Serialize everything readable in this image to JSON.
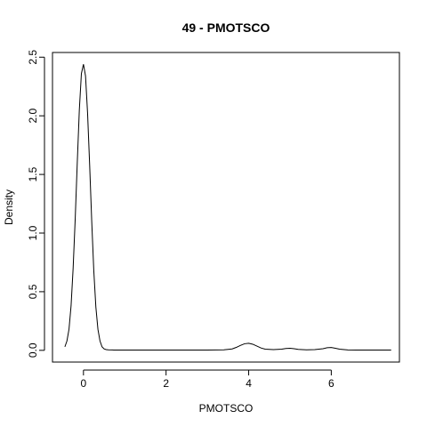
{
  "chart_data": {
    "type": "line",
    "title": "49 - PMOTSCO",
    "xlabel": "PMOTSCO",
    "ylabel": "Density",
    "xlim": [
      -0.75,
      7.65
    ],
    "ylim": [
      -0.1,
      2.54
    ],
    "x_ticks": [
      0,
      2,
      4,
      6
    ],
    "y_ticks": [
      0.0,
      0.5,
      1.0,
      1.5,
      2.0,
      2.5
    ],
    "x_tick_labels": [
      "0",
      "2",
      "4",
      "6"
    ],
    "y_tick_labels": [
      "0.0",
      "0.5",
      "1.0",
      "1.5",
      "2.0",
      "2.5"
    ],
    "grid": false,
    "line_color": "#000000",
    "series": [
      {
        "x": [
          -0.45,
          -0.4,
          -0.35,
          -0.3,
          -0.25,
          -0.2,
          -0.15,
          -0.1,
          -0.05,
          0.0,
          0.05,
          0.1,
          0.15,
          0.2,
          0.25,
          0.3,
          0.35,
          0.4,
          0.45,
          0.5,
          0.55,
          0.6,
          0.7,
          0.8,
          1.0,
          1.5,
          2.0,
          2.5,
          3.0,
          3.4,
          3.6,
          3.7,
          3.8,
          3.9,
          4.0,
          4.1,
          4.2,
          4.3,
          4.4,
          4.6,
          4.8,
          4.9,
          5.0,
          5.1,
          5.2,
          5.4,
          5.6,
          5.8,
          5.9,
          6.0,
          6.1,
          6.2,
          6.4,
          6.6,
          7.0,
          7.45
        ],
        "y": [
          0.03,
          0.08,
          0.18,
          0.38,
          0.7,
          1.12,
          1.6,
          2.05,
          2.36,
          2.44,
          2.34,
          2.02,
          1.58,
          1.1,
          0.68,
          0.37,
          0.18,
          0.08,
          0.03,
          0.012,
          0.006,
          0.004,
          0.003,
          0.002,
          0.002,
          0.002,
          0.002,
          0.002,
          0.002,
          0.004,
          0.012,
          0.025,
          0.042,
          0.056,
          0.06,
          0.052,
          0.036,
          0.02,
          0.01,
          0.006,
          0.01,
          0.016,
          0.018,
          0.014,
          0.008,
          0.004,
          0.006,
          0.014,
          0.022,
          0.024,
          0.018,
          0.01,
          0.003,
          0.002,
          0.002,
          0.002
        ]
      }
    ]
  }
}
